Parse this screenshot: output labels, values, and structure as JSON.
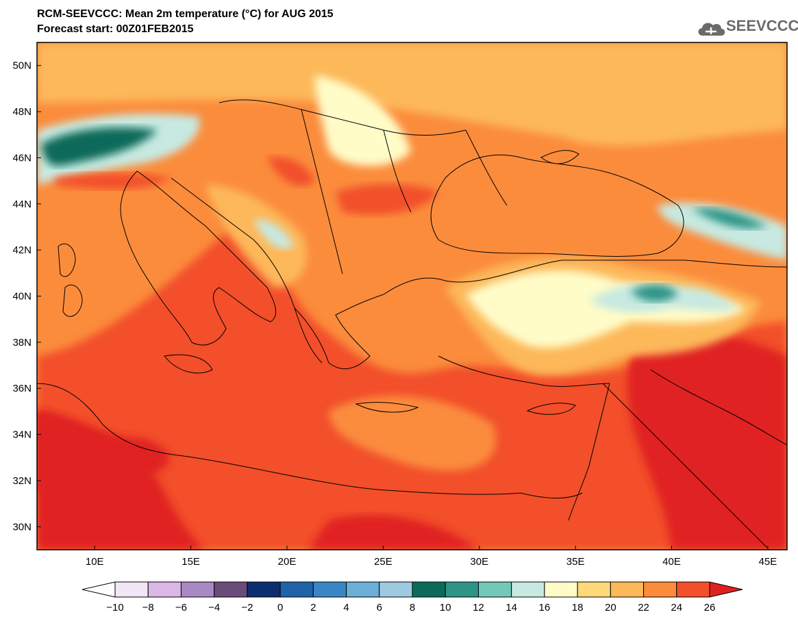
{
  "header": {
    "title": "RCM-SEEVCCC: Mean 2m temperature (°C) for AUG 2015",
    "subtitle": "Forecast start: 00Z01FEB2015"
  },
  "logo": {
    "text": "SEEVCCC",
    "icon": "cloud-logo-icon",
    "color": "#6b6b6b"
  },
  "map": {
    "lon_range": [
      7,
      46
    ],
    "lat_range": [
      29,
      51
    ],
    "lat_ticks": [
      "50N",
      "48N",
      "46N",
      "44N",
      "42N",
      "40N",
      "38N",
      "36N",
      "34N",
      "32N",
      "30N"
    ],
    "lon_ticks": [
      "10E",
      "15E",
      "20E",
      "25E",
      "30E",
      "35E",
      "40E",
      "45E"
    ]
  },
  "colorbar": {
    "labels": [
      "-10",
      "-8",
      "-6",
      "-4",
      "-2",
      "0",
      "2",
      "4",
      "6",
      "8",
      "10",
      "12",
      "14",
      "16",
      "18",
      "20",
      "22",
      "24",
      "26"
    ],
    "colors": [
      "#ffffff",
      "#f2e6f7",
      "#dbb8e6",
      "#a889c4",
      "#6a4c7a",
      "#0b2f6e",
      "#1f63a8",
      "#3a86c4",
      "#6baed6",
      "#9ecae1",
      "#0b6b5a",
      "#2e9486",
      "#73c8b8",
      "#c7e9e1",
      "#fffcc8",
      "#ffd87a",
      "#fdb85a",
      "#fb8c3c",
      "#f2502a",
      "#e02020"
    ],
    "min_arrow_color": "#ffffff",
    "max_arrow_color": "#e02020"
  }
}
